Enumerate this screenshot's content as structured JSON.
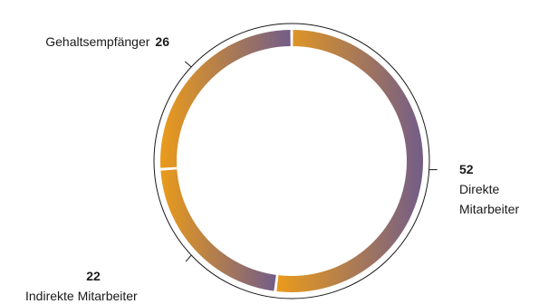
{
  "chart_data": {
    "type": "pie",
    "variant": "donut",
    "start_angle_deg": 0,
    "direction": "clockwise",
    "gradient_colors": {
      "start": "#e89a1c",
      "end": "#755e86"
    },
    "outline_ring": true,
    "slices": [
      {
        "label": "Direkte Mitarbeiter",
        "value": 52,
        "value_text": "52"
      },
      {
        "label": "Indirekte Mitarbeiter",
        "value": 22,
        "value_text": "22"
      },
      {
        "label": "Gehaltsempfänger",
        "value": 26,
        "value_text": "26"
      }
    ]
  }
}
